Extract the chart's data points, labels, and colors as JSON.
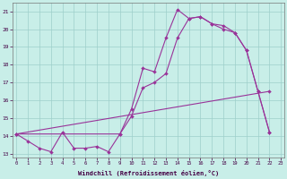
{
  "bg_color": "#c8eee8",
  "line_color": "#993399",
  "grid_color": "#9ecfca",
  "xlabel": "Windchill (Refroidissement éolien,°C)",
  "xlim_min": -0.3,
  "xlim_max": 23.3,
  "ylim_min": 12.8,
  "ylim_max": 21.5,
  "yticks": [
    13,
    14,
    15,
    16,
    17,
    18,
    19,
    20,
    21
  ],
  "xticks": [
    0,
    1,
    2,
    3,
    4,
    5,
    6,
    7,
    8,
    9,
    10,
    11,
    12,
    13,
    14,
    15,
    16,
    17,
    18,
    19,
    20,
    21,
    22,
    23
  ],
  "curve1_x": [
    0,
    1,
    2,
    3,
    4,
    5,
    6,
    7,
    8,
    9,
    10,
    11,
    12,
    13,
    14,
    15,
    16,
    17,
    18,
    19,
    20,
    21,
    22
  ],
  "curve1_y": [
    14.1,
    13.7,
    13.3,
    13.1,
    14.2,
    13.3,
    13.3,
    13.4,
    13.1,
    14.1,
    15.1,
    16.7,
    17.0,
    17.5,
    19.5,
    20.6,
    20.7,
    20.3,
    20.2,
    19.8,
    18.8,
    16.5,
    14.2
  ],
  "curve2_x": [
    0,
    9,
    10,
    11,
    12,
    13,
    14,
    15,
    16,
    17,
    18,
    19,
    20,
    21,
    22
  ],
  "curve2_y": [
    14.1,
    14.1,
    15.5,
    17.8,
    17.6,
    19.5,
    21.1,
    20.6,
    20.7,
    20.3,
    20.0,
    19.8,
    18.8,
    16.5,
    14.2
  ],
  "curve3_x": [
    0,
    22
  ],
  "curve3_y": [
    14.1,
    16.5
  ]
}
